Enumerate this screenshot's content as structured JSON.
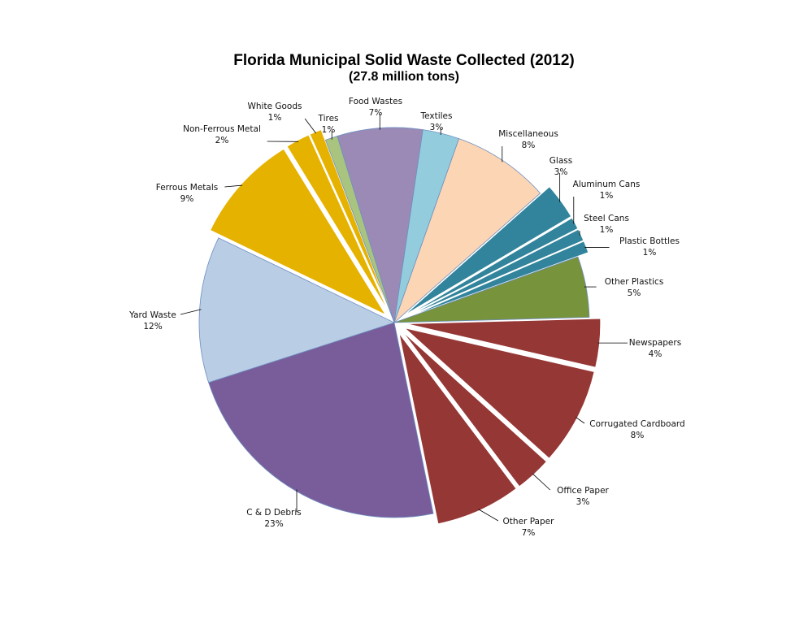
{
  "chart_data": {
    "type": "pie",
    "title": "Florida Municipal Solid Waste Collected (2012)",
    "subtitle": "(27.8 million tons)",
    "unit": "%",
    "slices": [
      {
        "label": "Food Wastes",
        "value": 7,
        "pct_label": "7%",
        "color": "#9b8ab6",
        "exploded": false
      },
      {
        "label": "Textiles",
        "value": 3,
        "pct_label": "3%",
        "color": "#93cddd",
        "exploded": false
      },
      {
        "label": "Miscellaneous",
        "value": 8,
        "pct_label": "8%",
        "color": "#fcd5b5",
        "exploded": false
      },
      {
        "label": "Glass",
        "value": 3,
        "pct_label": "3%",
        "color": "#31849b",
        "exploded": true
      },
      {
        "label": "Aluminum Cans",
        "value": 1,
        "pct_label": "1%",
        "color": "#31849b",
        "exploded": true
      },
      {
        "label": "Steel Cans",
        "value": 1,
        "pct_label": "1%",
        "color": "#31849b",
        "exploded": true
      },
      {
        "label": "Plastic Bottles",
        "value": 1,
        "pct_label": "1%",
        "color": "#31849b",
        "exploded": true
      },
      {
        "label": "Other Plastics",
        "value": 5,
        "pct_label": "5%",
        "color": "#77933c",
        "exploded": false
      },
      {
        "label": "Newspapers",
        "value": 4,
        "pct_label": "4%",
        "color": "#953735",
        "exploded": true
      },
      {
        "label": "Corrugated Cardboard",
        "value": 8,
        "pct_label": "8%",
        "color": "#953735",
        "exploded": true
      },
      {
        "label": "Office Paper",
        "value": 3,
        "pct_label": "3%",
        "color": "#953735",
        "exploded": true
      },
      {
        "label": "Other Paper",
        "value": 7,
        "pct_label": "7%",
        "color": "#953735",
        "exploded": true
      },
      {
        "label": "C & D Debris",
        "value": 23,
        "pct_label": "23%",
        "color": "#795d9b",
        "exploded": false
      },
      {
        "label": "Yard Waste",
        "value": 12,
        "pct_label": "12%",
        "color": "#b9cde5",
        "exploded": false
      },
      {
        "label": "Ferrous Metals",
        "value": 9,
        "pct_label": "9%",
        "color": "#e6b200",
        "exploded": true
      },
      {
        "label": "Non-Ferrous Metal",
        "value": 2,
        "pct_label": "2%",
        "color": "#e6b200",
        "exploded": true
      },
      {
        "label": "White Goods",
        "value": 1,
        "pct_label": "1%",
        "color": "#e6b200",
        "exploded": true
      },
      {
        "label": "Tires",
        "value": 1,
        "pct_label": "1%",
        "color": "#a9c47f",
        "exploded": false
      }
    ]
  }
}
